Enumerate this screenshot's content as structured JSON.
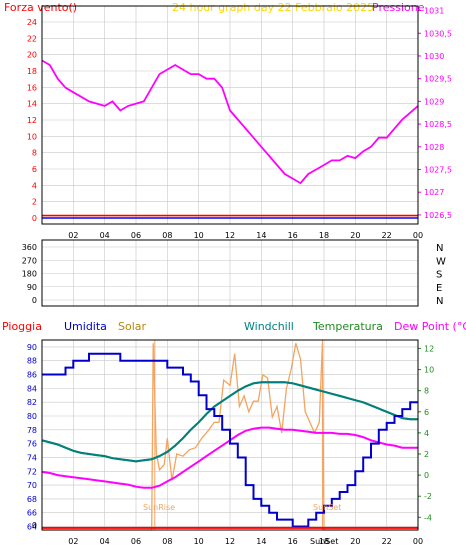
{
  "colors": {
    "background": "#ffffff",
    "axis": "#000000",
    "grid": "#c8c8c8",
    "pressure": "#ff00ff",
    "wind_speed": "#ff0000",
    "wind_dir": "#0000ff",
    "rain": "#ff0000",
    "humidity": "#0000cc",
    "solar": "#f4a460",
    "windchill": "#008080",
    "temperature": "#228b22",
    "dewpoint": "#ff00ff"
  },
  "panel1": {
    "title": "24 hour graph day   22 Febbraio 2025",
    "left_label": "Forza vento()",
    "right_label": "Pressione",
    "x_ticks": [
      "02",
      "04",
      "06",
      "08",
      "10",
      "12",
      "14",
      "16",
      "18",
      "20",
      "22",
      "00"
    ],
    "left_ticks": [
      "0",
      "2",
      "4",
      "6",
      "8",
      "10",
      "12",
      "14",
      "16",
      "18",
      "20",
      "22",
      "24"
    ],
    "right_ticks": [
      "1026,5",
      "1027",
      "1027,5",
      "1028",
      "1028,5",
      "1029",
      "1029,5",
      "1030",
      "1030,5",
      "1031"
    ]
  },
  "panel2": {
    "left_ticks": [
      "0",
      "90",
      "180",
      "270",
      "360"
    ],
    "right_ticks": [
      "N",
      "W",
      "S",
      "E",
      "N"
    ]
  },
  "panel3": {
    "labels": {
      "rain": "Pioggia",
      "humidity": "Umidita",
      "solar": "Solar",
      "windchill": "Windchill",
      "temperature": "Temperatura",
      "dewpoint": "Dew Point (°C)"
    },
    "left_ticks": [
      "64",
      "66",
      "68",
      "70",
      "72",
      "74",
      "76",
      "78",
      "80",
      "82",
      "84",
      "86",
      "88",
      "90"
    ],
    "right_ticks": [
      "-4",
      "-2",
      "0",
      "2",
      "4",
      "6",
      "8",
      "10",
      "12"
    ],
    "x_ticks": [
      "02",
      "04",
      "06",
      "08",
      "10",
      "12",
      "14",
      "16",
      "18",
      "20",
      "22",
      "00"
    ],
    "sunrise_label": "SunRise",
    "sunset_label": "SunSet",
    "sunset_tick_label": "SunSet"
  },
  "chart_data": [
    {
      "type": "line",
      "title": "24 hour graph day   22 Febbraio 2025",
      "x_unit": "hour",
      "x_ticks": [
        "02",
        "04",
        "06",
        "08",
        "10",
        "12",
        "14",
        "16",
        "18",
        "20",
        "22",
        "00"
      ],
      "left_ylabel": "Forza vento()",
      "right_ylabel": "Pressione",
      "left_ylim": [
        0,
        24
      ],
      "right_ylim": [
        1026.3,
        1031.1
      ],
      "grid": true,
      "series": [
        {
          "name": "Pressione",
          "axis": "right",
          "color": "#ff00ff",
          "x": [
            0,
            0.5,
            1,
            1.5,
            2,
            2.5,
            3,
            3.5,
            4,
            4.5,
            5,
            5.5,
            6,
            6.5,
            7,
            7.5,
            8,
            8.5,
            9,
            9.5,
            10,
            10.5,
            11,
            11.5,
            12,
            12.5,
            13,
            13.5,
            14,
            14.5,
            15,
            15.5,
            16,
            16.5,
            17,
            17.5,
            18,
            18.5,
            19,
            19.5,
            20,
            20.5,
            21,
            21.5,
            22,
            22.5,
            23,
            23.5,
            24
          ],
          "y": [
            1029.9,
            1029.8,
            1029.5,
            1029.3,
            1029.2,
            1029.1,
            1029.0,
            1028.95,
            1028.9,
            1029.0,
            1028.8,
            1028.9,
            1028.95,
            1029.0,
            1029.3,
            1029.6,
            1029.7,
            1029.8,
            1029.7,
            1029.6,
            1029.6,
            1029.5,
            1029.5,
            1029.3,
            1028.8,
            1028.6,
            1028.4,
            1028.2,
            1028.0,
            1027.8,
            1027.6,
            1027.4,
            1027.3,
            1027.2,
            1027.4,
            1027.5,
            1027.6,
            1027.7,
            1027.7,
            1027.8,
            1027.75,
            1027.9,
            1028.0,
            1028.2,
            1028.2,
            1028.4,
            1028.6,
            1028.75,
            1028.9
          ]
        },
        {
          "name": "",
          "axis": "left",
          "color": "#ff0000",
          "x": [
            0,
            24
          ],
          "y": [
            0.3,
            0.3
          ]
        },
        {
          "name": "",
          "axis": "left",
          "color": "#0000ff",
          "x": [
            0,
            24
          ],
          "y": [
            0,
            0
          ]
        }
      ]
    },
    {
      "type": "scatter",
      "x_unit": "hour",
      "ylim": [
        0,
        360
      ],
      "y_ticks": [
        "0",
        "90",
        "180",
        "270",
        "360"
      ],
      "right_ticks": [
        "N",
        "W",
        "S",
        "E",
        "N"
      ],
      "series": []
    },
    {
      "type": "line",
      "x_unit": "hour",
      "x_ticks": [
        "02",
        "04",
        "06",
        "08",
        "10",
        "12",
        "14",
        "16",
        "18",
        "20",
        "22",
        "00"
      ],
      "left_ylabel": "Umidita",
      "right_ylabel": "Dew Point (°C)",
      "left_ylim": [
        63.5,
        91
      ],
      "right_ylim": [
        -5.2,
        12.8
      ],
      "sunrise_hour": 7.2,
      "sunset_hour": 17.9,
      "grid": true,
      "series": [
        {
          "name": "Umidita",
          "axis": "left",
          "step": true,
          "color": "#0000cc",
          "x": [
            0,
            0.5,
            1,
            1.5,
            2,
            2.5,
            3,
            3.5,
            4,
            4.5,
            5,
            5.5,
            6,
            6.5,
            7,
            7.5,
            8,
            8.5,
            9,
            9.5,
            10,
            10.5,
            11,
            11.5,
            12,
            12.5,
            13,
            13.5,
            14,
            14.5,
            15,
            15.5,
            16,
            16.5,
            17,
            17.5,
            18,
            18.5,
            19,
            19.5,
            20,
            20.5,
            21,
            21.5,
            22,
            22.5,
            23,
            23.5,
            24
          ],
          "y": [
            86,
            86,
            86,
            87,
            88,
            88,
            89,
            89,
            89,
            89,
            88,
            88,
            88,
            88,
            88,
            88,
            87,
            87,
            86,
            85,
            83,
            81,
            80,
            78,
            76,
            74,
            70,
            68,
            67,
            66,
            65,
            65,
            64,
            64,
            65,
            66,
            67,
            68,
            69,
            70,
            72,
            74,
            76,
            78,
            79,
            80,
            81,
            82,
            82
          ]
        },
        {
          "name": "Temperatura",
          "axis": "right",
          "color": "#228b22",
          "x": [
            0,
            0.5,
            1,
            1.5,
            2,
            2.5,
            3,
            3.5,
            4,
            4.5,
            5,
            5.5,
            6,
            6.5,
            7,
            7.5,
            8,
            8.5,
            9,
            9.5,
            10,
            10.5,
            11,
            11.5,
            12,
            12.5,
            13,
            13.5,
            14,
            14.5,
            15,
            15.5,
            16,
            16.5,
            17,
            17.5,
            18,
            18.5,
            19,
            19.5,
            20,
            20.5,
            21,
            21.5,
            22,
            22.5,
            23,
            23.5,
            24
          ],
          "y": [
            3.3,
            3.1,
            2.9,
            2.6,
            2.3,
            2.1,
            2.0,
            1.9,
            1.8,
            1.6,
            1.5,
            1.4,
            1.3,
            1.4,
            1.5,
            1.8,
            2.2,
            2.8,
            3.5,
            4.3,
            5.0,
            5.8,
            6.5,
            7.0,
            7.5,
            8.0,
            8.4,
            8.7,
            8.8,
            8.8,
            8.8,
            8.8,
            8.7,
            8.5,
            8.3,
            8.1,
            7.9,
            7.7,
            7.5,
            7.3,
            7.1,
            6.9,
            6.6,
            6.3,
            6.0,
            5.7,
            5.4,
            5.3,
            5.3
          ]
        },
        {
          "name": "Dew Point (°C)",
          "axis": "right",
          "color": "#ff00ff",
          "x": [
            0,
            0.5,
            1,
            1.5,
            2,
            2.5,
            3,
            3.5,
            4,
            4.5,
            5,
            5.5,
            6,
            6.5,
            7,
            7.5,
            8,
            8.5,
            9,
            9.5,
            10,
            10.5,
            11,
            11.5,
            12,
            12.5,
            13,
            13.5,
            14,
            14.5,
            15,
            15.5,
            16,
            16.5,
            17,
            17.5,
            18,
            18.5,
            19,
            19.5,
            20,
            20.5,
            21,
            21.5,
            22,
            22.5,
            23,
            23.5,
            24
          ],
          "y": [
            0.3,
            0.2,
            0.0,
            -0.1,
            -0.2,
            -0.3,
            -0.4,
            -0.5,
            -0.6,
            -0.7,
            -0.8,
            -0.9,
            -1.1,
            -1.2,
            -1.2,
            -1.0,
            -0.6,
            -0.2,
            0.3,
            0.8,
            1.3,
            1.8,
            2.3,
            2.8,
            3.3,
            3.8,
            4.2,
            4.4,
            4.5,
            4.5,
            4.4,
            4.3,
            4.3,
            4.2,
            4.1,
            4.0,
            4.0,
            4.0,
            3.9,
            3.9,
            3.8,
            3.6,
            3.3,
            3.1,
            2.9,
            2.8,
            2.6,
            2.6,
            2.6
          ]
        },
        {
          "name": "Windchill",
          "axis": "right",
          "color": "#008080",
          "x": [
            0,
            0.5,
            1,
            1.5,
            2,
            2.5,
            3,
            3.5,
            4,
            4.5,
            5,
            5.5,
            6,
            6.5,
            7,
            7.5,
            8,
            8.5,
            9,
            9.5,
            10,
            10.5,
            11,
            11.5,
            12,
            12.5,
            13,
            13.5,
            14,
            14.5,
            15,
            15.5,
            16,
            16.5,
            17,
            17.5,
            18,
            18.5,
            19,
            19.5,
            20,
            20.5,
            21,
            21.5,
            22,
            22.5,
            23,
            23.5,
            24
          ],
          "y": [
            3.3,
            3.1,
            2.9,
            2.6,
            2.3,
            2.1,
            2.0,
            1.9,
            1.8,
            1.6,
            1.5,
            1.4,
            1.3,
            1.4,
            1.5,
            1.8,
            2.2,
            2.8,
            3.5,
            4.3,
            5.0,
            5.8,
            6.5,
            7.0,
            7.5,
            8.0,
            8.4,
            8.7,
            8.8,
            8.8,
            8.8,
            8.8,
            8.7,
            8.5,
            8.3,
            8.1,
            7.9,
            7.7,
            7.5,
            7.3,
            7.1,
            6.9,
            6.6,
            6.3,
            6.0,
            5.7,
            5.4,
            5.3,
            5.3
          ]
        },
        {
          "name": "Solar",
          "axis": "right",
          "color": "#f4a460",
          "x": [
            0,
            7.0,
            7.1,
            7.3,
            7.5,
            7.8,
            8.0,
            8.3,
            8.6,
            9.0,
            9.4,
            9.8,
            10.2,
            10.6,
            11.0,
            11.3,
            11.6,
            12.0,
            12.3,
            12.6,
            12.9,
            13.2,
            13.5,
            13.8,
            14.1,
            14.4,
            14.7,
            15.0,
            15.3,
            15.6,
            15.9,
            16.2,
            16.5,
            16.8,
            17.1,
            17.4,
            17.7,
            17.9,
            18.0,
            24
          ],
          "y": [
            -5.2,
            -5.2,
            12.5,
            2.0,
            0.5,
            1.0,
            3.5,
            -0.5,
            2.0,
            1.8,
            2.4,
            2.6,
            3.5,
            4.2,
            5.0,
            5.0,
            9.0,
            8.5,
            11.5,
            6.5,
            7.5,
            6.0,
            7.0,
            7.0,
            9.5,
            9.2,
            5.5,
            6.5,
            4.0,
            8.2,
            10.0,
            12.5,
            11.0,
            6.0,
            5.0,
            4.0,
            5.0,
            12.5,
            -5.2,
            -5.2
          ]
        },
        {
          "name": "Pioggia",
          "axis": "left",
          "color": "#ff0000",
          "x": [
            0,
            24
          ],
          "y": [
            63.8,
            63.8
          ]
        }
      ]
    }
  ]
}
